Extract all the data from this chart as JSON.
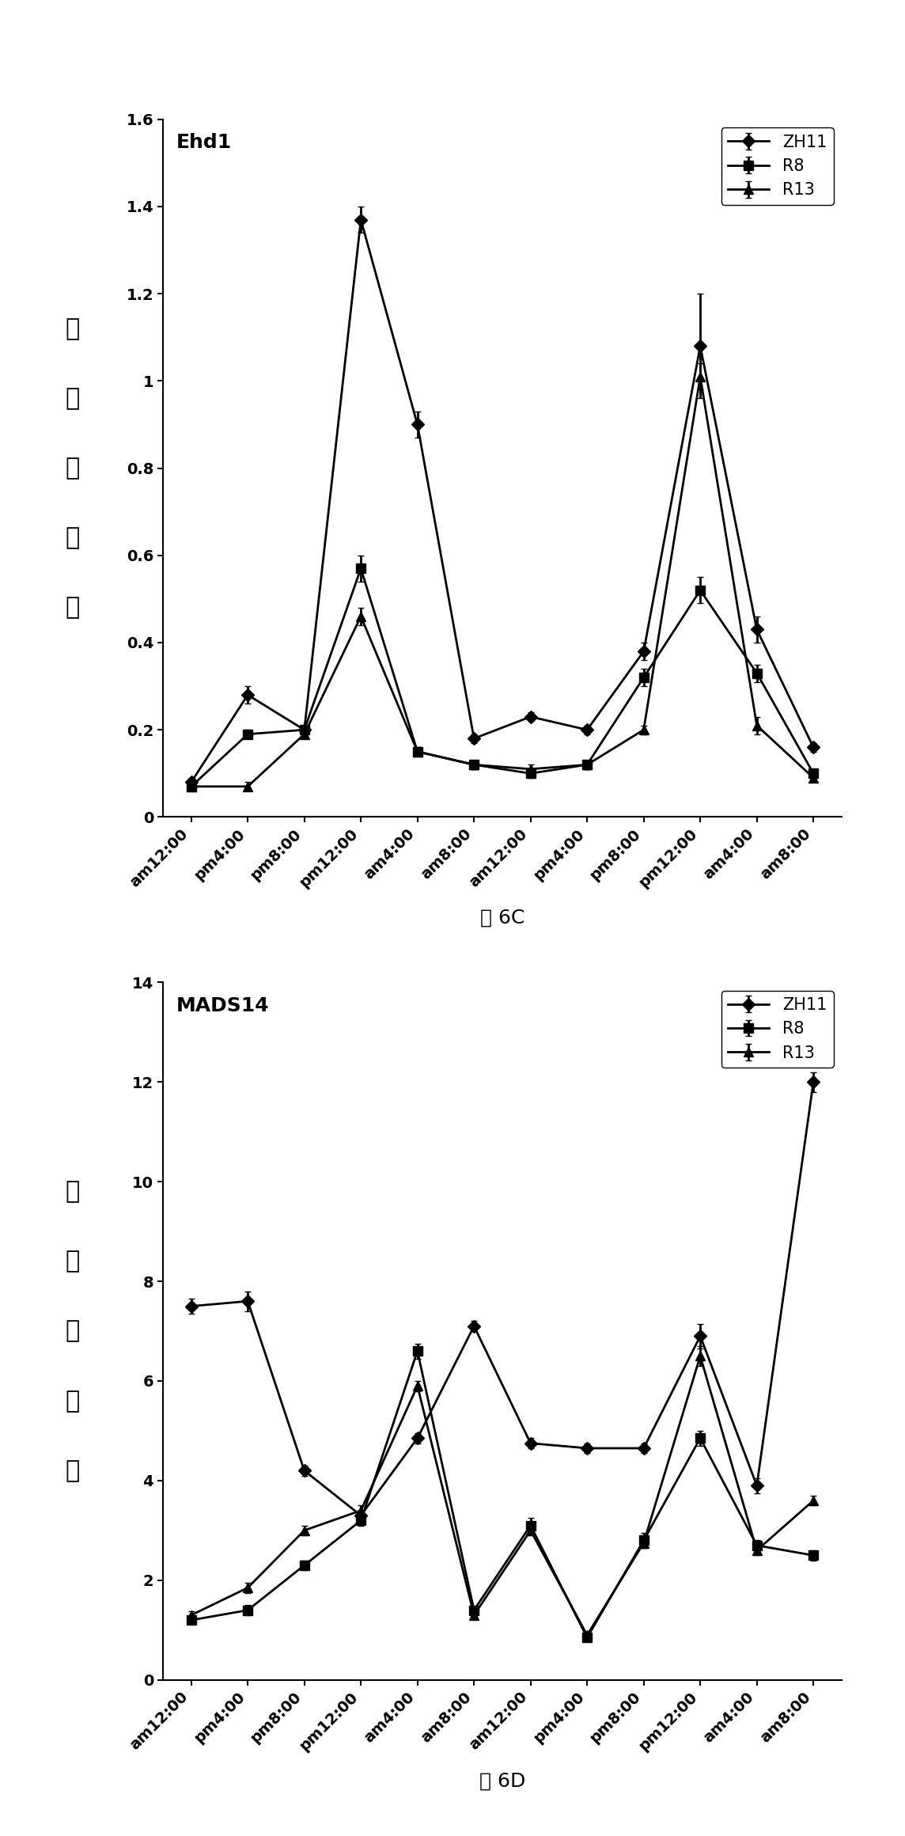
{
  "chart_C": {
    "title": "Ehd1",
    "ylabel_chars": [
      "相",
      "对",
      "表",
      "达",
      "量"
    ],
    "ylim": [
      0,
      1.6
    ],
    "yticks": [
      0,
      0.2,
      0.4,
      0.6,
      0.8,
      1.0,
      1.2,
      1.4,
      1.6
    ],
    "yticklabels": [
      "0",
      "0.2",
      "0.4",
      "0.6",
      "0.8",
      "1",
      "1.2",
      "1.4",
      "1.6"
    ],
    "xticklabels": [
      "am12:00",
      "pm4:00",
      "pm8:00",
      "pm12:00",
      "am4:00",
      "am8:00",
      "am12:00",
      "pm4:00",
      "pm8:00",
      "pm12:00",
      "am4:00",
      "am8:00"
    ],
    "ZH11": [
      0.08,
      0.28,
      0.2,
      1.37,
      0.9,
      0.18,
      0.23,
      0.2,
      0.38,
      1.08,
      0.43,
      0.16
    ],
    "R8": [
      0.07,
      0.19,
      0.2,
      0.57,
      0.15,
      0.12,
      0.1,
      0.12,
      0.32,
      0.52,
      0.33,
      0.1
    ],
    "R13": [
      0.07,
      0.07,
      0.19,
      0.46,
      0.15,
      0.12,
      0.11,
      0.12,
      0.2,
      1.01,
      0.21,
      0.09
    ],
    "ZH11_err": [
      0.01,
      0.02,
      0.01,
      0.03,
      0.03,
      0.01,
      0.01,
      0.01,
      0.02,
      0.12,
      0.03,
      0.01
    ],
    "R8_err": [
      0.01,
      0.01,
      0.01,
      0.03,
      0.01,
      0.01,
      0.01,
      0.01,
      0.02,
      0.03,
      0.02,
      0.01
    ],
    "R13_err": [
      0.01,
      0.01,
      0.01,
      0.02,
      0.01,
      0.01,
      0.01,
      0.01,
      0.01,
      0.03,
      0.02,
      0.01
    ],
    "fig_label": "图 6C"
  },
  "chart_D": {
    "title": "MADS14",
    "ylabel_chars": [
      "相",
      "对",
      "表",
      "达",
      "量"
    ],
    "ylim": [
      0,
      14
    ],
    "yticks": [
      0,
      2,
      4,
      6,
      8,
      10,
      12,
      14
    ],
    "yticklabels": [
      "0",
      "2",
      "4",
      "6",
      "8",
      "10",
      "12",
      "14"
    ],
    "xticklabels": [
      "am12:00",
      "pm4:00",
      "pm8:00",
      "pm12:00",
      "am4:00",
      "am8:00",
      "am12:00",
      "pm4:00",
      "pm8:00",
      "pm12:00",
      "am4:00",
      "am8:00"
    ],
    "ZH11": [
      7.5,
      7.6,
      4.2,
      3.3,
      4.85,
      7.1,
      4.75,
      4.65,
      4.65,
      6.9,
      3.9,
      12.0
    ],
    "R8": [
      1.2,
      1.4,
      2.3,
      3.2,
      6.6,
      1.4,
      3.1,
      0.85,
      2.8,
      4.85,
      2.7,
      2.5
    ],
    "R13": [
      1.3,
      1.85,
      3.0,
      3.4,
      5.9,
      1.3,
      3.0,
      0.9,
      2.75,
      6.5,
      2.6,
      3.6
    ],
    "ZH11_err": [
      0.15,
      0.2,
      0.1,
      0.1,
      0.1,
      0.1,
      0.1,
      0.1,
      0.1,
      0.25,
      0.15,
      0.2
    ],
    "R8_err": [
      0.08,
      0.1,
      0.1,
      0.1,
      0.15,
      0.08,
      0.15,
      0.05,
      0.15,
      0.15,
      0.1,
      0.1
    ],
    "R13_err": [
      0.08,
      0.1,
      0.1,
      0.1,
      0.1,
      0.08,
      0.1,
      0.05,
      0.1,
      0.2,
      0.1,
      0.1
    ],
    "fig_label": "图 6D"
  },
  "line_color": "#000000",
  "marker_ZH11": "D",
  "marker_R8": "s",
  "marker_R13": "^",
  "markersize": 8,
  "linewidth": 2.0,
  "legend_labels": [
    "ZH11",
    "R8",
    "R13"
  ],
  "font_size_tick": 14,
  "font_size_label": 22,
  "font_size_title": 18,
  "font_size_legend": 15,
  "font_size_fig_label": 18
}
